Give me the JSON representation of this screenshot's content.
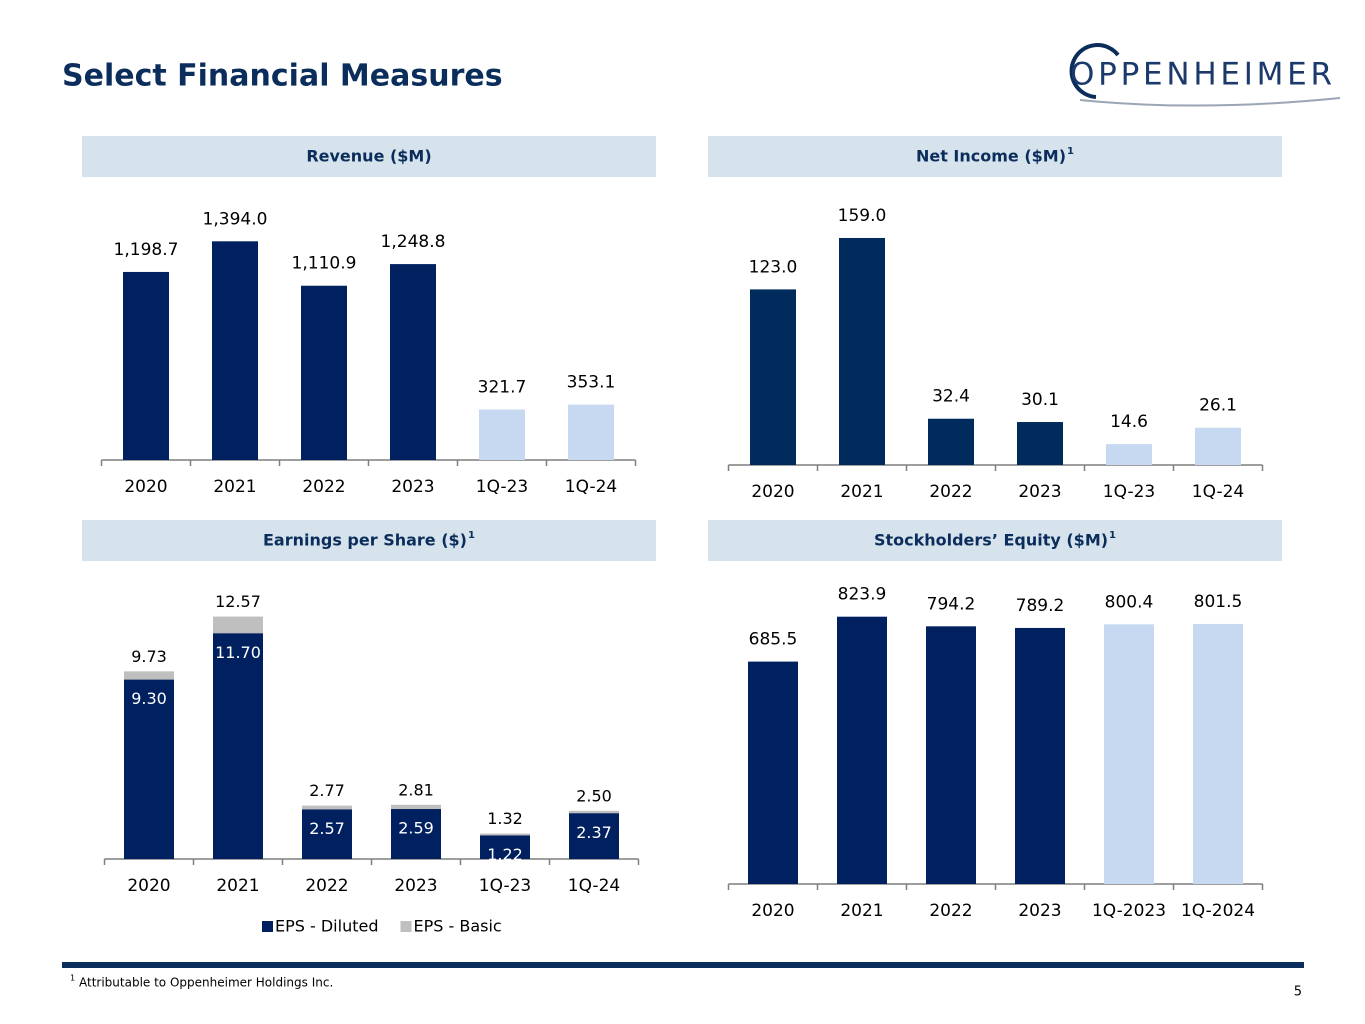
{
  "title": "Select Financial Measures",
  "logo": "OPPENHEIMER",
  "footnote": {
    "mark": "1",
    "text": "Attributable to Oppenheimer Holdings Inc."
  },
  "page_number": "5",
  "chart_data": [
    {
      "type": "bar",
      "title": "Revenue ($M)",
      "categories": [
        "2020",
        "2021",
        "2022",
        "2023",
        "1Q-23",
        "1Q-24"
      ],
      "values": [
        1198.7,
        1394.0,
        1110.9,
        1248.8,
        321.7,
        353.1
      ],
      "value_labels": [
        "1,198.7",
        "1,394.0",
        "1,110.9",
        "1,248.8",
        "321.7",
        "353.1"
      ],
      "colors": [
        "#002060",
        "#002060",
        "#002060",
        "#002060",
        "#c6d9f0",
        "#c6d9f0"
      ],
      "ylim": [
        0,
        1600
      ]
    },
    {
      "type": "bar",
      "title": "Net Income ($M)",
      "title_mark": "1",
      "categories": [
        "2020",
        "2021",
        "2022",
        "2023",
        "1Q-23",
        "1Q-24"
      ],
      "values": [
        123.0,
        159.0,
        32.4,
        30.1,
        14.6,
        26.1
      ],
      "value_labels": [
        "123.0",
        "159.0",
        "32.4",
        "30.1",
        "14.6",
        "26.1"
      ],
      "colors": [
        "#002b5c",
        "#002b5c",
        "#002b5c",
        "#002b5c",
        "#c6d9f0",
        "#c6d9f0"
      ],
      "ylim": [
        0,
        180
      ]
    },
    {
      "type": "bar",
      "title": "Earnings per Share ($)",
      "title_mark": "1",
      "barmode": "overlay",
      "categories": [
        "2020",
        "2021",
        "2022",
        "2023",
        "1Q-23",
        "1Q-24"
      ],
      "series": [
        {
          "name": "EPS - Basic",
          "color": "#bfbfbf",
          "values": [
            9.73,
            12.57,
            2.77,
            2.81,
            1.32,
            2.5
          ],
          "value_labels": [
            "9.73",
            "12.57",
            "2.77",
            "2.81",
            "1.32",
            "2.50"
          ]
        },
        {
          "name": "EPS - Diluted",
          "color": "#002060",
          "values": [
            9.3,
            11.7,
            2.57,
            2.59,
            1.22,
            2.37
          ],
          "value_labels": [
            "9.30",
            "11.70",
            "2.57",
            "2.59",
            "1.22",
            "2.37"
          ]
        }
      ],
      "legend": "bottom",
      "ylim": [
        0,
        14
      ]
    },
    {
      "type": "bar",
      "title": "Stockholders’ Equity ($M)",
      "title_mark": "1",
      "categories": [
        "2020",
        "2021",
        "2022",
        "2023",
        "1Q-2023",
        "1Q-2024"
      ],
      "values": [
        685.5,
        823.9,
        794.2,
        789.2,
        800.4,
        801.5
      ],
      "value_labels": [
        "685.5",
        "823.9",
        "794.2",
        "789.2",
        "800.4",
        "801.5"
      ],
      "colors": [
        "#002060",
        "#002060",
        "#002060",
        "#002060",
        "#c6d9f0",
        "#c6d9f0"
      ],
      "ylim": [
        0,
        900
      ]
    }
  ]
}
